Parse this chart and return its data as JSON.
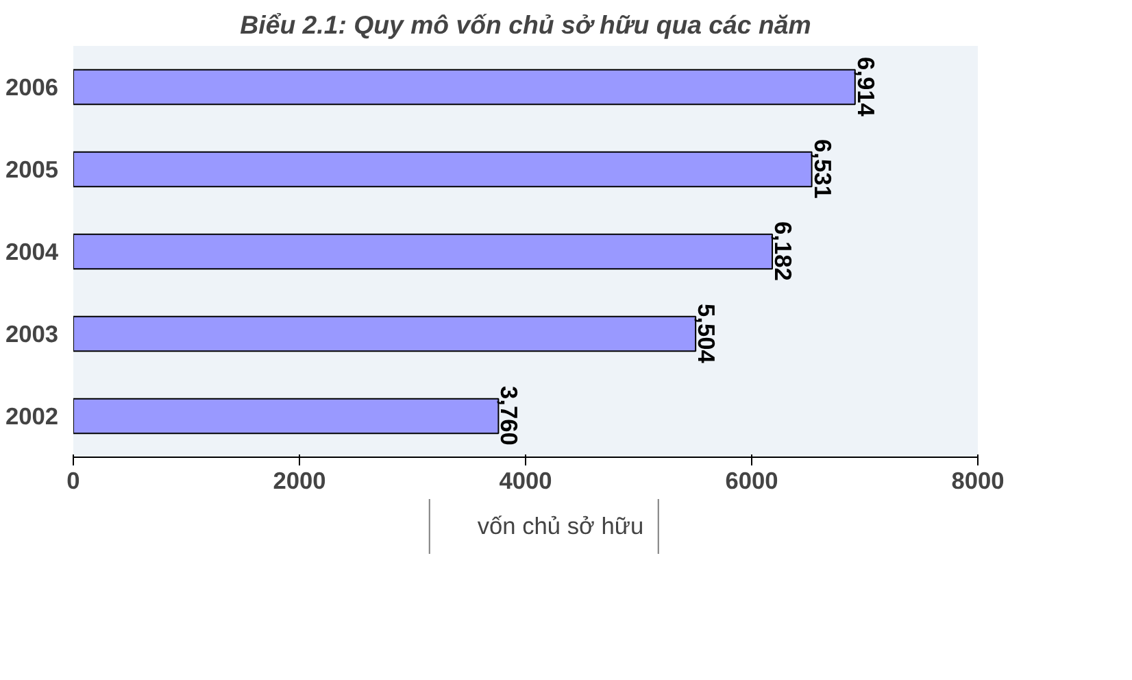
{
  "chart_data": {
    "type": "bar",
    "orientation": "horizontal",
    "title": "Biểu 2.1: Quy mô vốn chủ sở hữu qua các năm",
    "categories": [
      "2006",
      "2005",
      "2004",
      "2003",
      "2002"
    ],
    "series": [
      {
        "name": "vốn chủ sở hữu",
        "color": "#9999ff",
        "values": [
          6914,
          6531,
          6182,
          5504,
          3760
        ],
        "value_labels": [
          "6,914",
          "6,531",
          "6,182",
          "5,504",
          "3,760"
        ]
      }
    ],
    "xlim": [
      0,
      8000
    ],
    "xticks": [
      0,
      2000,
      4000,
      6000,
      8000
    ],
    "grid": false,
    "legend": "bottom"
  }
}
